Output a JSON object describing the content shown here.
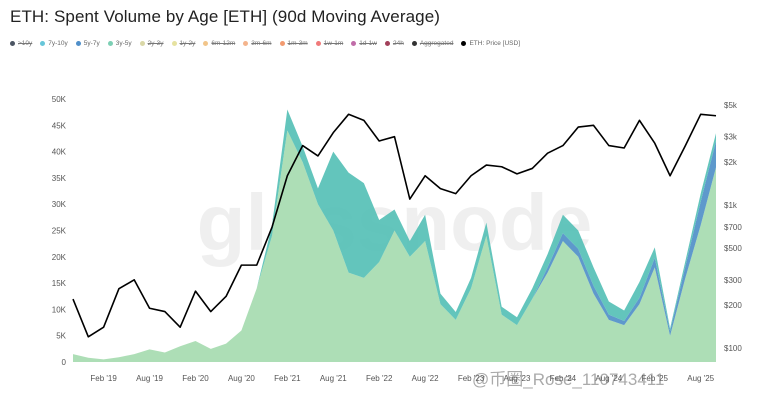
{
  "title": "ETH: Spent Volume by Age [ETH] (90d Moving Average)",
  "legend": [
    {
      "label": ">10y",
      "color": "#4b5563",
      "enabled": false
    },
    {
      "label": "7y-10y",
      "color": "#67c6d9",
      "enabled": true
    },
    {
      "label": "5y-7y",
      "color": "#4f8fc9",
      "enabled": true
    },
    {
      "label": "3y-5y",
      "color": "#7ccfb4",
      "enabled": true
    },
    {
      "label": "2y-3y",
      "color": "#d9d7a6",
      "enabled": false
    },
    {
      "label": "1y-2y",
      "color": "#e6e2a0",
      "enabled": false
    },
    {
      "label": "6m-12m",
      "color": "#f2c58a",
      "enabled": false
    },
    {
      "label": "3m-6m",
      "color": "#f4b48c",
      "enabled": false
    },
    {
      "label": "1m-3m",
      "color": "#f29a6f",
      "enabled": false
    },
    {
      "label": "1w-1m",
      "color": "#f07a7a",
      "enabled": false
    },
    {
      "label": "1d-1w",
      "color": "#c06ca8",
      "enabled": false
    },
    {
      "label": "24h",
      "color": "#a2405a",
      "enabled": false
    },
    {
      "label": "Aggregated",
      "color": "#333333",
      "enabled": false
    },
    {
      "label": "ETH: Price [USD]",
      "color": "#000000",
      "enabled": true
    }
  ],
  "watermark": "glassnode",
  "corner_text": "@币圈_Rose_110743411",
  "colors": {
    "young": "#a9dcb2",
    "teal": "#52bfb5",
    "blue": "#4d8ec6",
    "price": "#000000"
  },
  "chart_data": {
    "type": "area",
    "x_ticks": [
      "Feb '19",
      "Aug '19",
      "Feb '20",
      "Aug '20",
      "Feb '21",
      "Aug '21",
      "Feb '22",
      "Aug '22",
      "Feb '23",
      "Aug '23",
      "Feb '24",
      "Aug '24",
      "Feb '25",
      "Aug '25"
    ],
    "x_range": [
      "2018-10",
      "2025-10"
    ],
    "ylim": [
      0,
      50000
    ],
    "y_ticks": [
      "0",
      "5K",
      "10K",
      "15K",
      "20K",
      "25K",
      "30K",
      "35K",
      "40K",
      "45K",
      "50K"
    ],
    "y2_ticks": [
      "$100",
      "$200",
      "$300",
      "$500",
      "$700",
      "$1k",
      "$2k",
      "$3k",
      "$5k"
    ],
    "y2_scale": "log",
    "y2_range": [
      80,
      5500
    ],
    "x": [
      "2018-10",
      "2018-12",
      "2019-02",
      "2019-04",
      "2019-06",
      "2019-08",
      "2019-10",
      "2019-12",
      "2020-02",
      "2020-04",
      "2020-06",
      "2020-08",
      "2020-10",
      "2020-12",
      "2021-02",
      "2021-04",
      "2021-06",
      "2021-08",
      "2021-10",
      "2021-12",
      "2022-02",
      "2022-04",
      "2022-06",
      "2022-08",
      "2022-10",
      "2022-12",
      "2023-02",
      "2023-04",
      "2023-06",
      "2023-08",
      "2023-10",
      "2023-12",
      "2024-02",
      "2024-04",
      "2024-06",
      "2024-08",
      "2024-10",
      "2024-12",
      "2025-02",
      "2025-04",
      "2025-06",
      "2025-08",
      "2025-10"
    ],
    "series": [
      {
        "name": "3y-5y",
        "values": [
          1500,
          800,
          500,
          900,
          1500,
          2400,
          1800,
          3000,
          4000,
          2500,
          3500,
          6000,
          14000,
          24000,
          44000,
          38000,
          30000,
          25000,
          17000,
          16000,
          19000,
          25000,
          20000,
          23000,
          11000,
          8000,
          14000,
          24000,
          9000,
          7000,
          12000,
          17000,
          23000,
          20000,
          13000,
          8000,
          7000,
          11000,
          18000,
          5000,
          16000,
          26000,
          37000
        ]
      },
      {
        "name": "5y-7y",
        "values": [
          0,
          0,
          0,
          0,
          0,
          0,
          0,
          0,
          0,
          0,
          0,
          0,
          0,
          0,
          0,
          0,
          0,
          0,
          0,
          0,
          0,
          0,
          0,
          0,
          0,
          0,
          0,
          0,
          0,
          0,
          0,
          1000,
          1500,
          1500,
          1500,
          1000,
          800,
          1200,
          1800,
          900,
          2200,
          4500,
          5000
        ]
      },
      {
        "name": "7y-10y",
        "values": [
          0,
          0,
          0,
          0,
          0,
          0,
          0,
          0,
          0,
          0,
          0,
          0,
          0,
          2000,
          4000,
          3000,
          3000,
          15000,
          19000,
          18000,
          8000,
          4000,
          3000,
          5000,
          2000,
          1500,
          2000,
          2500,
          1500,
          1500,
          2000,
          2500,
          3500,
          3500,
          3500,
          2500,
          2000,
          3000,
          2000,
          500,
          1000,
          1500,
          1500
        ]
      },
      {
        "name": "ETH: Price [USD]",
        "values": [
          220,
          120,
          140,
          260,
          300,
          190,
          180,
          140,
          250,
          180,
          230,
          380,
          380,
          700,
          1600,
          2600,
          2200,
          3200,
          4300,
          3900,
          2800,
          3000,
          1100,
          1600,
          1300,
          1200,
          1600,
          1900,
          1850,
          1650,
          1800,
          2300,
          2600,
          3500,
          3600,
          2600,
          2500,
          3900,
          2700,
          1600,
          2600,
          4300,
          4200
        ]
      }
    ]
  }
}
